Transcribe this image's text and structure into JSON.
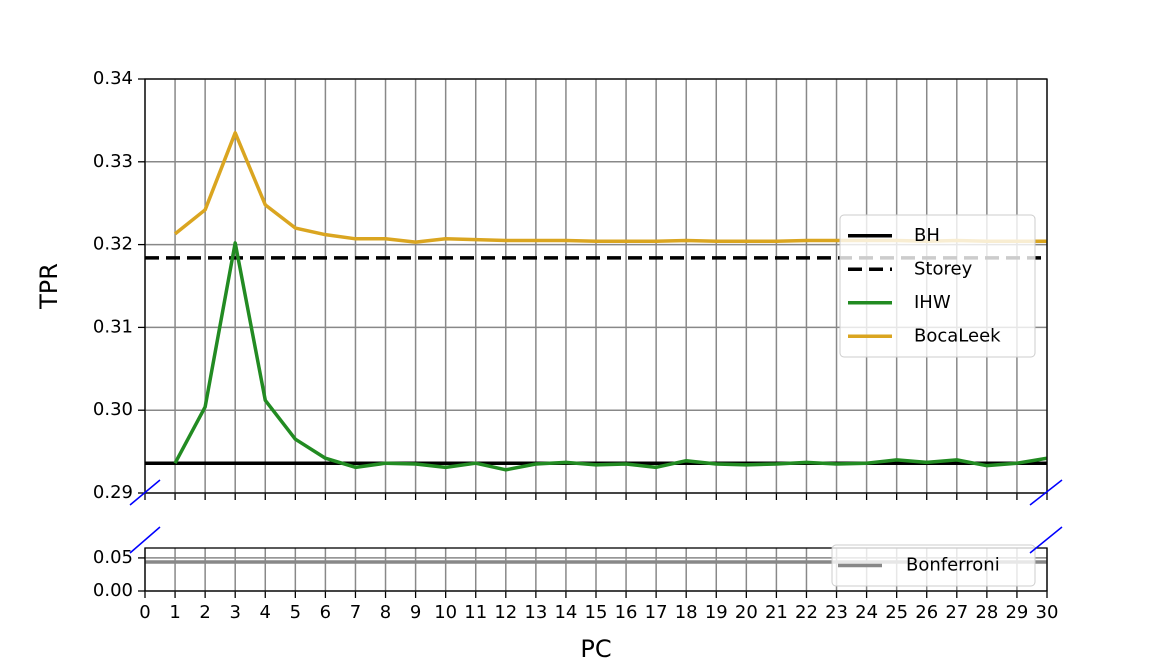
{
  "chart_data": [
    {
      "type": "line",
      "ylabel": "TPR",
      "ylim": [
        0.29,
        0.34
      ],
      "yticks": [
        0.29,
        {
          "value": 0.3,
          "label": "0.30"
        },
        0.31,
        0.32,
        0.33,
        0.34
      ],
      "grid": true,
      "legend": "center right",
      "x": [
        1,
        2,
        3,
        4,
        5,
        6,
        7,
        8,
        9,
        10,
        11,
        12,
        13,
        14,
        15,
        16,
        17,
        18,
        19,
        20,
        21,
        22,
        23,
        24,
        25,
        26,
        27,
        28,
        29,
        30
      ],
      "series": [
        {
          "name": "BH",
          "color": "#000000",
          "linestyle": "solid",
          "hline": 0.2936
        },
        {
          "name": "Storey",
          "color": "#000000",
          "linestyle": "dashed",
          "hline": 0.3184
        },
        {
          "name": "IHW",
          "color": "#228b22",
          "linestyle": "solid",
          "values": [
            0.2936,
            0.3004,
            0.3202,
            0.3012,
            0.2965,
            0.2942,
            0.2931,
            0.2936,
            0.2935,
            0.2931,
            0.2936,
            0.2928,
            0.2935,
            0.2937,
            0.2934,
            0.2935,
            0.2931,
            0.2939,
            0.2935,
            0.2934,
            0.2935,
            0.2937,
            0.2935,
            0.2936,
            0.294,
            0.2937,
            0.294,
            0.2933,
            0.2936,
            0.2942
          ]
        },
        {
          "name": "BocaLeek",
          "color": "#daa520",
          "linestyle": "solid",
          "values": [
            0.3213,
            0.3242,
            0.3335,
            0.3248,
            0.322,
            0.3212,
            0.3207,
            0.3207,
            0.3203,
            0.3207,
            0.3206,
            0.3205,
            0.3205,
            0.3205,
            0.3204,
            0.3204,
            0.3204,
            0.3205,
            0.3204,
            0.3204,
            0.3204,
            0.3205,
            0.3205,
            0.3205,
            0.3205,
            0.3204,
            0.3205,
            0.3204,
            0.3204,
            0.3204
          ]
        }
      ]
    },
    {
      "type": "line",
      "xlabel": "PC",
      "xlim": [
        0,
        30
      ],
      "xticks": [
        0,
        1,
        2,
        3,
        4,
        5,
        6,
        7,
        8,
        9,
        10,
        11,
        12,
        13,
        14,
        15,
        16,
        17,
        18,
        19,
        20,
        21,
        22,
        23,
        24,
        25,
        26,
        27,
        28,
        29,
        30
      ],
      "ylim": [
        0,
        0.065
      ],
      "yticks": [
        {
          "value": 0,
          "label": "0.00"
        },
        0.05
      ],
      "grid": true,
      "legend": "lower right",
      "series": [
        {
          "name": "Bonferroni",
          "color": "#888888",
          "linestyle": "solid",
          "hline": 0.0439
        }
      ]
    }
  ]
}
